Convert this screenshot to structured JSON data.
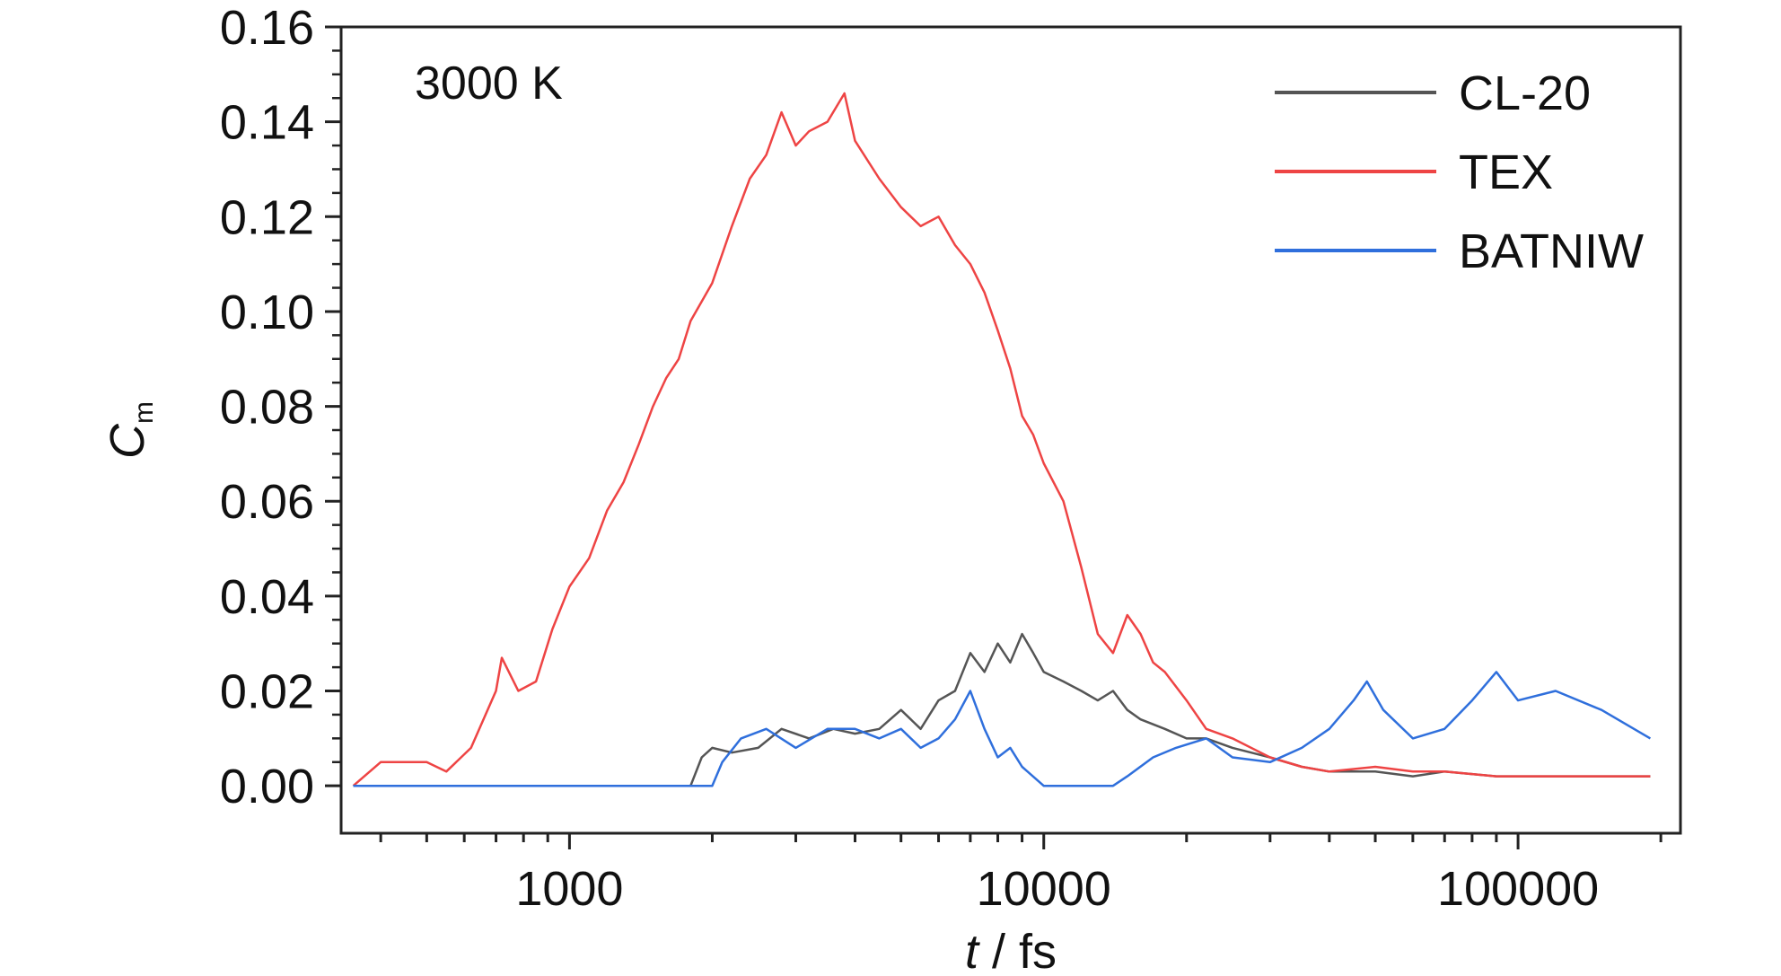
{
  "chart_data": {
    "type": "line",
    "annotation": "3000 K",
    "xlabel_var": "t",
    "xlabel_unit": " / fs",
    "ylabel_var": "C",
    "ylabel_sub": "m",
    "xscale": "log",
    "xlim": [
      330,
      220000
    ],
    "ylim": [
      -0.01,
      0.16
    ],
    "x_ticks": [
      "1000",
      "10000",
      "100000"
    ],
    "y_ticks": [
      "0.00",
      "0.02",
      "0.04",
      "0.06",
      "0.08",
      "0.10",
      "0.12",
      "0.14",
      "0.16"
    ],
    "legend_position": "top-right",
    "series": [
      {
        "name": "CL-20",
        "color": "#555555",
        "points": [
          [
            350,
            0
          ],
          [
            1800,
            0
          ],
          [
            1900,
            0.006
          ],
          [
            2000,
            0.008
          ],
          [
            2200,
            0.007
          ],
          [
            2500,
            0.008
          ],
          [
            2800,
            0.012
          ],
          [
            3200,
            0.01
          ],
          [
            3600,
            0.012
          ],
          [
            4000,
            0.011
          ],
          [
            4500,
            0.012
          ],
          [
            5000,
            0.016
          ],
          [
            5500,
            0.012
          ],
          [
            6000,
            0.018
          ],
          [
            6500,
            0.02
          ],
          [
            7000,
            0.028
          ],
          [
            7500,
            0.024
          ],
          [
            8000,
            0.03
          ],
          [
            8500,
            0.026
          ],
          [
            9000,
            0.032
          ],
          [
            9500,
            0.028
          ],
          [
            10000,
            0.024
          ],
          [
            11000,
            0.022
          ],
          [
            12000,
            0.02
          ],
          [
            13000,
            0.018
          ],
          [
            14000,
            0.02
          ],
          [
            15000,
            0.016
          ],
          [
            16000,
            0.014
          ],
          [
            18000,
            0.012
          ],
          [
            20000,
            0.01
          ],
          [
            22000,
            0.01
          ],
          [
            25000,
            0.008
          ],
          [
            30000,
            0.006
          ],
          [
            35000,
            0.004
          ],
          [
            40000,
            0.003
          ],
          [
            50000,
            0.003
          ],
          [
            60000,
            0.002
          ],
          [
            70000,
            0.003
          ],
          [
            90000,
            0.002
          ],
          [
            120000,
            0.002
          ],
          [
            150000,
            0.002
          ],
          [
            190000,
            0.002
          ]
        ]
      },
      {
        "name": "TEX",
        "color": "#ee4444",
        "points": [
          [
            350,
            0
          ],
          [
            400,
            0.005
          ],
          [
            500,
            0.005
          ],
          [
            550,
            0.003
          ],
          [
            620,
            0.008
          ],
          [
            700,
            0.02
          ],
          [
            720,
            0.027
          ],
          [
            780,
            0.02
          ],
          [
            850,
            0.022
          ],
          [
            920,
            0.033
          ],
          [
            1000,
            0.042
          ],
          [
            1100,
            0.048
          ],
          [
            1200,
            0.058
          ],
          [
            1300,
            0.064
          ],
          [
            1400,
            0.072
          ],
          [
            1500,
            0.08
          ],
          [
            1600,
            0.086
          ],
          [
            1700,
            0.09
          ],
          [
            1800,
            0.098
          ],
          [
            2000,
            0.106
          ],
          [
            2200,
            0.118
          ],
          [
            2400,
            0.128
          ],
          [
            2600,
            0.133
          ],
          [
            2800,
            0.142
          ],
          [
            3000,
            0.135
          ],
          [
            3200,
            0.138
          ],
          [
            3500,
            0.14
          ],
          [
            3800,
            0.146
          ],
          [
            4000,
            0.136
          ],
          [
            4500,
            0.128
          ],
          [
            5000,
            0.122
          ],
          [
            5500,
            0.118
          ],
          [
            6000,
            0.12
          ],
          [
            6500,
            0.114
          ],
          [
            7000,
            0.11
          ],
          [
            7500,
            0.104
          ],
          [
            8000,
            0.096
          ],
          [
            8500,
            0.088
          ],
          [
            9000,
            0.078
          ],
          [
            9500,
            0.074
          ],
          [
            10000,
            0.068
          ],
          [
            11000,
            0.06
          ],
          [
            12000,
            0.046
          ],
          [
            13000,
            0.032
          ],
          [
            14000,
            0.028
          ],
          [
            15000,
            0.036
          ],
          [
            16000,
            0.032
          ],
          [
            17000,
            0.026
          ],
          [
            18000,
            0.024
          ],
          [
            20000,
            0.018
          ],
          [
            22000,
            0.012
          ],
          [
            25000,
            0.01
          ],
          [
            30000,
            0.006
          ],
          [
            35000,
            0.004
          ],
          [
            40000,
            0.003
          ],
          [
            50000,
            0.004
          ],
          [
            60000,
            0.003
          ],
          [
            70000,
            0.003
          ],
          [
            90000,
            0.002
          ],
          [
            120000,
            0.002
          ],
          [
            150000,
            0.002
          ],
          [
            190000,
            0.002
          ]
        ]
      },
      {
        "name": "BATNIW",
        "color": "#2f6fdc",
        "points": [
          [
            350,
            0
          ],
          [
            2000,
            0
          ],
          [
            2100,
            0.005
          ],
          [
            2300,
            0.01
          ],
          [
            2600,
            0.012
          ],
          [
            3000,
            0.008
          ],
          [
            3500,
            0.012
          ],
          [
            4000,
            0.012
          ],
          [
            4500,
            0.01
          ],
          [
            5000,
            0.012
          ],
          [
            5500,
            0.008
          ],
          [
            6000,
            0.01
          ],
          [
            6500,
            0.014
          ],
          [
            7000,
            0.02
          ],
          [
            7500,
            0.012
          ],
          [
            8000,
            0.006
          ],
          [
            8500,
            0.008
          ],
          [
            9000,
            0.004
          ],
          [
            10000,
            0
          ],
          [
            14000,
            0
          ],
          [
            15000,
            0.002
          ],
          [
            17000,
            0.006
          ],
          [
            19000,
            0.008
          ],
          [
            22000,
            0.01
          ],
          [
            25000,
            0.006
          ],
          [
            30000,
            0.005
          ],
          [
            35000,
            0.008
          ],
          [
            40000,
            0.012
          ],
          [
            45000,
            0.018
          ],
          [
            48000,
            0.022
          ],
          [
            52000,
            0.016
          ],
          [
            60000,
            0.01
          ],
          [
            70000,
            0.012
          ],
          [
            80000,
            0.018
          ],
          [
            90000,
            0.024
          ],
          [
            100000,
            0.018
          ],
          [
            120000,
            0.02
          ],
          [
            150000,
            0.016
          ],
          [
            190000,
            0.01
          ]
        ]
      }
    ]
  }
}
